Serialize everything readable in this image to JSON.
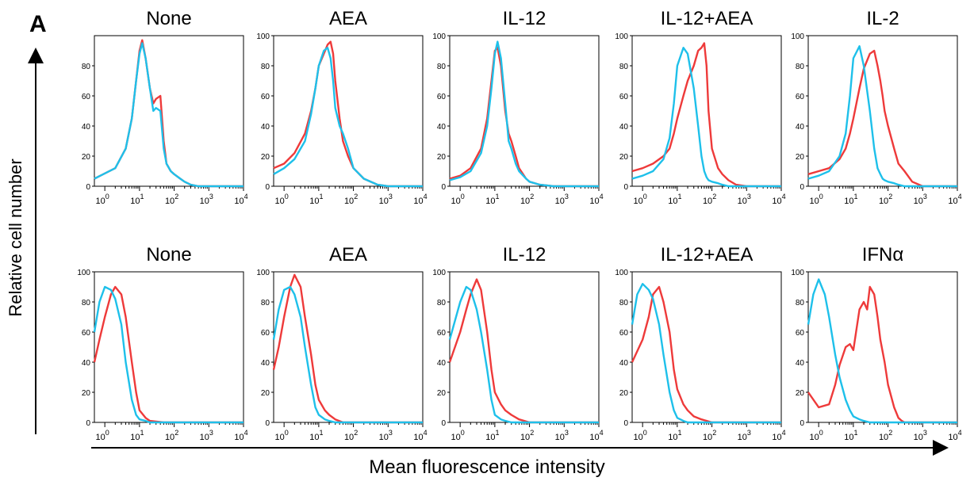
{
  "figure": {
    "panel_label": "A",
    "y_axis_label": "Relative cell number",
    "x_axis_label": "Mean fluorescence intensity",
    "series_colors": {
      "red": "#ee3a3a",
      "blue": "#1ec0ea"
    }
  },
  "chart_data": [
    {
      "type": "line",
      "title": "None",
      "row": 0,
      "col": 0,
      "xscale": "log",
      "xlim": [
        0.5,
        10000
      ],
      "ylim": [
        0,
        100
      ],
      "yticks": [
        0,
        20,
        40,
        60,
        80
      ],
      "xtick_labels": [
        "10^0",
        "10^1",
        "10^2",
        "10^3",
        "10^4"
      ],
      "series": [
        {
          "color": "#ee3a3a",
          "x": [
            0.5,
            2,
            4,
            6,
            8,
            10,
            12,
            15,
            20,
            25,
            30,
            40,
            50,
            60,
            80,
            100,
            150,
            200,
            300,
            500,
            1000,
            10000
          ],
          "y": [
            5,
            12,
            25,
            45,
            70,
            90,
            97,
            85,
            65,
            55,
            58,
            60,
            30,
            15,
            10,
            8,
            5,
            3,
            1,
            0,
            0,
            0
          ]
        },
        {
          "color": "#1ec0ea",
          "x": [
            0.5,
            2,
            4,
            6,
            8,
            10,
            12,
            15,
            20,
            25,
            30,
            40,
            50,
            60,
            80,
            100,
            150,
            200,
            300,
            500,
            1000,
            10000
          ],
          "y": [
            5,
            12,
            25,
            45,
            70,
            88,
            95,
            85,
            65,
            50,
            52,
            50,
            25,
            15,
            10,
            8,
            5,
            3,
            1,
            0,
            0,
            0
          ]
        }
      ]
    },
    {
      "type": "line",
      "title": "AEA",
      "row": 0,
      "col": 1,
      "xscale": "log",
      "xlim": [
        0.5,
        10000
      ],
      "ylim": [
        0,
        100
      ],
      "yticks": [
        0,
        20,
        40,
        60,
        80,
        100
      ],
      "xtick_labels": [
        "10^0",
        "10^1",
        "10^2",
        "10^3",
        "10^4"
      ],
      "series": [
        {
          "color": "#ee3a3a",
          "x": [
            0.5,
            1,
            2,
            4,
            6,
            8,
            10,
            14,
            18,
            22,
            26,
            30,
            40,
            50,
            70,
            100,
            200,
            500,
            1000,
            10000
          ],
          "y": [
            12,
            15,
            22,
            35,
            50,
            65,
            80,
            88,
            94,
            96,
            88,
            70,
            45,
            30,
            20,
            12,
            5,
            1,
            0,
            0
          ]
        },
        {
          "color": "#1ec0ea",
          "x": [
            0.5,
            1,
            2,
            4,
            6,
            8,
            10,
            14,
            18,
            22,
            26,
            30,
            40,
            50,
            70,
            100,
            200,
            500,
            1000,
            10000
          ],
          "y": [
            8,
            12,
            18,
            30,
            48,
            65,
            80,
            90,
            92,
            85,
            70,
            52,
            40,
            35,
            25,
            12,
            5,
            1,
            0,
            0
          ]
        }
      ]
    },
    {
      "type": "line",
      "title": "IL-12",
      "row": 0,
      "col": 2,
      "xscale": "log",
      "xlim": [
        0.5,
        10000
      ],
      "ylim": [
        0,
        100
      ],
      "yticks": [
        0,
        20,
        40,
        60,
        80,
        100
      ],
      "xtick_labels": [
        "10^0",
        "10^1",
        "10^2",
        "10^3",
        "10^4"
      ],
      "series": [
        {
          "color": "#ee3a3a",
          "x": [
            0.5,
            1,
            2,
            4,
            6,
            8,
            10,
            12,
            15,
            20,
            25,
            30,
            40,
            50,
            80,
            100,
            200,
            500,
            1000,
            10000
          ],
          "y": [
            5,
            7,
            12,
            25,
            45,
            70,
            90,
            92,
            80,
            50,
            35,
            30,
            20,
            12,
            5,
            3,
            1,
            0,
            0,
            0
          ]
        },
        {
          "color": "#1ec0ea",
          "x": [
            0.5,
            1,
            2,
            4,
            6,
            8,
            10,
            12,
            15,
            20,
            25,
            30,
            40,
            50,
            80,
            100,
            200,
            500,
            1000,
            10000
          ],
          "y": [
            4,
            6,
            10,
            22,
            40,
            65,
            88,
            96,
            85,
            55,
            30,
            25,
            15,
            10,
            5,
            3,
            1,
            0,
            0,
            0
          ]
        }
      ]
    },
    {
      "type": "line",
      "title": "IL-12+AEA",
      "row": 0,
      "col": 3,
      "xscale": "log",
      "xlim": [
        0.5,
        10000
      ],
      "ylim": [
        0,
        100
      ],
      "yticks": [
        0,
        20,
        40,
        60,
        80,
        100
      ],
      "xtick_labels": [
        "10^0",
        "10^1",
        "10^2",
        "10^3",
        "10^4"
      ],
      "series": [
        {
          "color": "#ee3a3a",
          "x": [
            0.5,
            1,
            2,
            4,
            6,
            8,
            10,
            15,
            20,
            30,
            40,
            50,
            60,
            70,
            80,
            100,
            150,
            200,
            300,
            500,
            1000,
            10000
          ],
          "y": [
            10,
            12,
            15,
            20,
            25,
            35,
            45,
            60,
            70,
            80,
            90,
            92,
            95,
            80,
            50,
            25,
            12,
            8,
            4,
            1,
            0,
            0
          ]
        },
        {
          "color": "#1ec0ea",
          "x": [
            0.5,
            1,
            2,
            4,
            6,
            8,
            10,
            15,
            20,
            30,
            40,
            50,
            60,
            70,
            80,
            100,
            150,
            200,
            300,
            500,
            1000,
            10000
          ],
          "y": [
            5,
            7,
            10,
            18,
            32,
            55,
            80,
            92,
            88,
            65,
            40,
            20,
            10,
            6,
            4,
            3,
            2,
            1,
            0,
            0,
            0,
            0
          ]
        }
      ]
    },
    {
      "type": "line",
      "title": "IL-2",
      "row": 0,
      "col": 4,
      "xscale": "log",
      "xlim": [
        0.5,
        10000
      ],
      "ylim": [
        0,
        100
      ],
      "yticks": [
        0,
        20,
        40,
        60,
        80,
        100
      ],
      "xtick_labels": [
        "10^0",
        "10^1",
        "10^2",
        "10^3",
        "10^4"
      ],
      "series": [
        {
          "color": "#ee3a3a",
          "x": [
            0.5,
            1,
            2,
            4,
            6,
            8,
            10,
            15,
            20,
            30,
            40,
            50,
            60,
            70,
            80,
            100,
            150,
            200,
            300,
            500,
            1000,
            10000
          ],
          "y": [
            8,
            10,
            12,
            18,
            25,
            35,
            45,
            65,
            78,
            88,
            90,
            80,
            70,
            60,
            50,
            40,
            25,
            15,
            10,
            3,
            0,
            0
          ]
        },
        {
          "color": "#1ec0ea",
          "x": [
            0.5,
            1,
            2,
            4,
            6,
            8,
            10,
            15,
            20,
            30,
            40,
            50,
            60,
            70,
            80,
            100,
            150,
            200,
            300,
            500,
            1000,
            10000
          ],
          "y": [
            5,
            7,
            10,
            20,
            35,
            60,
            85,
            93,
            80,
            50,
            25,
            12,
            8,
            5,
            4,
            3,
            2,
            1,
            0,
            0,
            0,
            0
          ]
        }
      ]
    },
    {
      "type": "line",
      "title": "None",
      "row": 1,
      "col": 0,
      "xscale": "log",
      "xlim": [
        0.5,
        10000
      ],
      "ylim": [
        0,
        100
      ],
      "yticks": [
        0,
        20,
        40,
        60,
        80,
        100
      ],
      "xtick_labels": [
        "10^0",
        "10^1",
        "10^2",
        "10^3",
        "10^4"
      ],
      "series": [
        {
          "color": "#ee3a3a",
          "x": [
            0.5,
            0.7,
            1,
            1.5,
            2,
            3,
            4,
            6,
            8,
            10,
            15,
            20,
            50,
            100,
            10000
          ],
          "y": [
            40,
            55,
            70,
            85,
            90,
            85,
            70,
            40,
            20,
            8,
            3,
            1,
            0,
            0,
            0
          ]
        },
        {
          "color": "#1ec0ea",
          "x": [
            0.5,
            0.7,
            1,
            1.5,
            2,
            3,
            4,
            6,
            8,
            10,
            15,
            20,
            50,
            100,
            10000
          ],
          "y": [
            60,
            80,
            90,
            88,
            82,
            65,
            40,
            15,
            5,
            2,
            1,
            0,
            0,
            0,
            0
          ]
        }
      ]
    },
    {
      "type": "line",
      "title": "AEA",
      "row": 1,
      "col": 1,
      "xscale": "log",
      "xlim": [
        0.5,
        10000
      ],
      "ylim": [
        0,
        100
      ],
      "yticks": [
        0,
        20,
        40,
        60,
        80,
        100
      ],
      "xtick_labels": [
        "10^0",
        "10^1",
        "10^2",
        "10^3",
        "10^4"
      ],
      "series": [
        {
          "color": "#ee3a3a",
          "x": [
            0.5,
            0.7,
            1,
            1.5,
            2,
            3,
            4,
            6,
            8,
            10,
            15,
            20,
            30,
            50,
            100,
            10000
          ],
          "y": [
            35,
            50,
            70,
            90,
            98,
            90,
            70,
            45,
            25,
            15,
            8,
            5,
            2,
            0,
            0,
            0
          ]
        },
        {
          "color": "#1ec0ea",
          "x": [
            0.5,
            0.7,
            1,
            1.5,
            2,
            3,
            4,
            6,
            8,
            10,
            15,
            20,
            30,
            50,
            100,
            10000
          ],
          "y": [
            55,
            75,
            88,
            90,
            85,
            70,
            50,
            25,
            10,
            5,
            2,
            1,
            0,
            0,
            0,
            0
          ]
        }
      ]
    },
    {
      "type": "line",
      "title": "IL-12",
      "row": 1,
      "col": 2,
      "xscale": "log",
      "xlim": [
        0.5,
        10000
      ],
      "ylim": [
        0,
        100
      ],
      "yticks": [
        0,
        20,
        40,
        60,
        80,
        100
      ],
      "xtick_labels": [
        "10^0",
        "10^1",
        "10^2",
        "10^3",
        "10^4"
      ],
      "series": [
        {
          "color": "#ee3a3a",
          "x": [
            0.5,
            1,
            1.5,
            2,
            3,
            4,
            6,
            8,
            10,
            15,
            20,
            30,
            50,
            100,
            10000
          ],
          "y": [
            40,
            60,
            75,
            85,
            95,
            88,
            60,
            35,
            20,
            12,
            8,
            5,
            2,
            0,
            0
          ]
        },
        {
          "color": "#1ec0ea",
          "x": [
            0.5,
            1,
            1.5,
            2,
            3,
            4,
            6,
            8,
            10,
            15,
            20,
            30,
            50,
            100,
            10000
          ],
          "y": [
            55,
            80,
            90,
            88,
            75,
            60,
            35,
            15,
            5,
            2,
            1,
            0,
            0,
            0,
            0
          ]
        }
      ]
    },
    {
      "type": "line",
      "title": "IL-12+AEA",
      "row": 1,
      "col": 3,
      "xscale": "log",
      "xlim": [
        0.5,
        10000
      ],
      "ylim": [
        0,
        100
      ],
      "yticks": [
        0,
        20,
        40,
        60,
        80,
        100
      ],
      "xtick_labels": [
        "10^0",
        "10^1",
        "10^2",
        "10^3",
        "10^4"
      ],
      "series": [
        {
          "color": "#ee3a3a",
          "x": [
            0.5,
            1,
            1.5,
            2,
            3,
            4,
            6,
            8,
            10,
            15,
            20,
            30,
            50,
            100,
            10000
          ],
          "y": [
            40,
            55,
            70,
            85,
            90,
            80,
            60,
            35,
            22,
            12,
            8,
            4,
            2,
            0,
            0
          ]
        },
        {
          "color": "#1ec0ea",
          "x": [
            0.5,
            0.7,
            1,
            1.5,
            2,
            3,
            4,
            6,
            8,
            10,
            15,
            20,
            50,
            100,
            10000
          ],
          "y": [
            65,
            85,
            92,
            88,
            82,
            65,
            45,
            20,
            8,
            3,
            1,
            0,
            0,
            0,
            0
          ]
        }
      ]
    },
    {
      "type": "line",
      "title": "IFNα",
      "row": 1,
      "col": 4,
      "xscale": "log",
      "xlim": [
        0.5,
        10000
      ],
      "ylim": [
        0,
        100
      ],
      "yticks": [
        0,
        20,
        40,
        60,
        80,
        100
      ],
      "xtick_labels": [
        "10^0",
        "10^1",
        "10^2",
        "10^3",
        "10^4"
      ],
      "series": [
        {
          "color": "#ee3a3a",
          "x": [
            0.5,
            1,
            2,
            3,
            4,
            6,
            8,
            10,
            12,
            15,
            20,
            25,
            30,
            40,
            50,
            60,
            80,
            100,
            150,
            200,
            250,
            300,
            500,
            1000,
            10000
          ],
          "y": [
            20,
            10,
            12,
            25,
            38,
            50,
            52,
            48,
            60,
            75,
            80,
            75,
            90,
            85,
            70,
            55,
            40,
            25,
            10,
            3,
            1,
            0,
            0,
            0,
            0
          ]
        },
        {
          "color": "#1ec0ea",
          "x": [
            0.5,
            0.7,
            1,
            1.5,
            2,
            3,
            4,
            6,
            8,
            10,
            15,
            20,
            30,
            50,
            100,
            10000
          ],
          "y": [
            65,
            85,
            95,
            85,
            70,
            45,
            30,
            15,
            8,
            4,
            2,
            1,
            0,
            0,
            0,
            0
          ]
        }
      ]
    }
  ]
}
